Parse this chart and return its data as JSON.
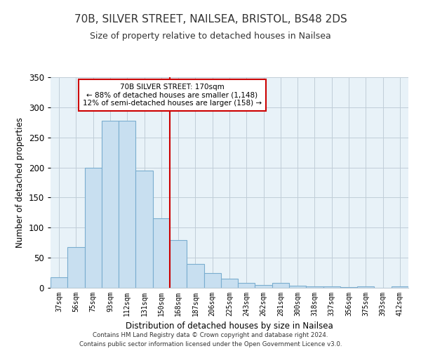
{
  "title": "70B, SILVER STREET, NAILSEA, BRISTOL, BS48 2DS",
  "subtitle": "Size of property relative to detached houses in Nailsea",
  "xlabel": "Distribution of detached houses by size in Nailsea",
  "ylabel": "Number of detached properties",
  "bar_labels": [
    "37sqm",
    "56sqm",
    "75sqm",
    "93sqm",
    "112sqm",
    "131sqm",
    "150sqm",
    "168sqm",
    "187sqm",
    "206sqm",
    "225sqm",
    "243sqm",
    "262sqm",
    "281sqm",
    "300sqm",
    "318sqm",
    "337sqm",
    "356sqm",
    "375sqm",
    "393sqm",
    "412sqm"
  ],
  "bar_values": [
    18,
    68,
    200,
    278,
    278,
    195,
    115,
    79,
    40,
    25,
    15,
    8,
    5,
    8,
    3,
    2,
    2,
    1,
    2,
    0,
    2
  ],
  "bar_color": "#c8dff0",
  "bar_edge_color": "#7aadcf",
  "vline_x": 6.5,
  "vline_color": "#cc0000",
  "annotation_title": "70B SILVER STREET: 170sqm",
  "annotation_line1": "← 88% of detached houses are smaller (1,148)",
  "annotation_line2": "12% of semi-detached houses are larger (158) →",
  "annotation_box_color": "#ffffff",
  "annotation_box_edge_color": "#cc0000",
  "ylim": [
    0,
    350
  ],
  "yticks": [
    0,
    50,
    100,
    150,
    200,
    250,
    300,
    350
  ],
  "plot_bg_color": "#e8f2f8",
  "footer_line1": "Contains HM Land Registry data © Crown copyright and database right 2024.",
  "footer_line2": "Contains public sector information licensed under the Open Government Licence v3.0.",
  "background_color": "#ffffff",
  "title_fontsize": 11,
  "subtitle_fontsize": 9,
  "grid_color": "#c0cdd8"
}
